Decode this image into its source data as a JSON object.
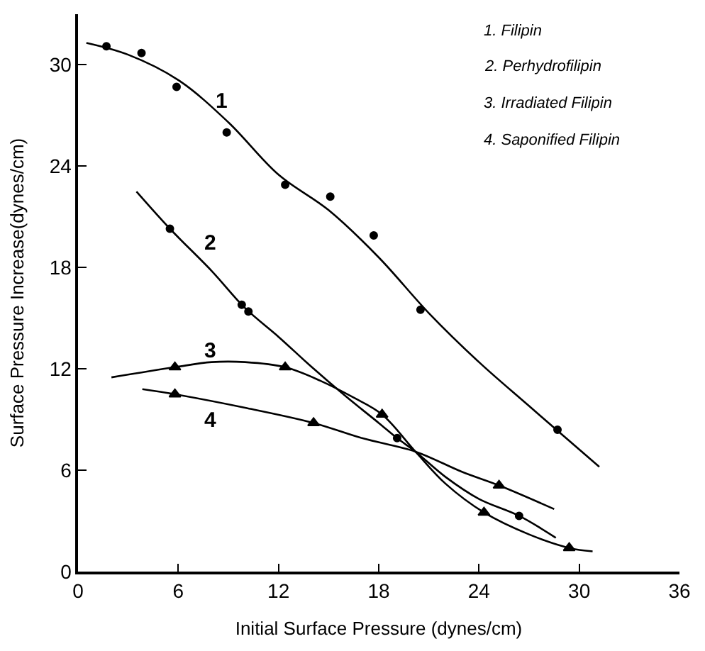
{
  "chart_data": {
    "type": "scatter",
    "xlabel": "Initial Surface Pressure (dynes/cm)",
    "ylabel": "Surface Pressure Increase(dynes/cm)",
    "xlim": [
      0,
      36
    ],
    "xticks": [
      0,
      6,
      12,
      18,
      24,
      30,
      36
    ],
    "ylim": [
      0,
      33
    ],
    "yticks": [
      0,
      6,
      12,
      18,
      24,
      30
    ],
    "legend": false,
    "series": [
      {
        "type": "line",
        "marker": "none",
        "color": "#000000",
        "x": [
          0.5,
          3,
          6,
          9,
          12,
          15,
          18,
          21,
          24,
          27,
          31.2
        ],
        "values": [
          31.3,
          30.6,
          29.1,
          26.6,
          23.5,
          21.4,
          18.6,
          15.3,
          12.4,
          9.8,
          6.2
        ]
      },
      {
        "type": "line",
        "marker": "none",
        "color": "#000000",
        "x": [
          3.5,
          5.5,
          8,
          10,
          12,
          14,
          16,
          18,
          19.1,
          20.2,
          22,
          24,
          26.4,
          28.6
        ],
        "values": [
          22.5,
          20.3,
          17.8,
          15.6,
          13.9,
          12.1,
          10.4,
          8.8,
          7.9,
          7.1,
          5.6,
          4.3,
          3.3,
          2.0
        ]
      },
      {
        "type": "line",
        "marker": "none",
        "color": "#000000",
        "x": [
          2,
          5.8,
          8,
          10,
          12.4,
          14.5,
          16.5,
          18.2,
          20.2,
          22,
          24.3,
          27,
          29.4,
          30.8
        ],
        "values": [
          11.5,
          12.1,
          12.4,
          12.4,
          12.1,
          11.3,
          10.3,
          9.3,
          7.1,
          5.2,
          3.5,
          2.2,
          1.4,
          1.2
        ]
      },
      {
        "type": "line",
        "marker": "none",
        "color": "#000000",
        "x": [
          3.85,
          5.8,
          10,
          14.1,
          17,
          20.2,
          23,
          25.2,
          28.5
        ],
        "values": [
          10.8,
          10.5,
          9.7,
          8.8,
          7.9,
          7.1,
          5.9,
          5.1,
          3.7
        ]
      },
      {
        "marker": "circle",
        "color": "#000000",
        "x": [
          1.7,
          3.8,
          5.9,
          8.9,
          12.4,
          15.1,
          17.7,
          20.5,
          28.7
        ],
        "values": [
          31.1,
          30.7,
          28.7,
          26.0,
          22.9,
          22.2,
          19.9,
          15.5,
          8.4
        ]
      },
      {
        "marker": "circle",
        "color": "#000000",
        "x": [
          5.5,
          9.8,
          10.2,
          19.1,
          26.4
        ],
        "values": [
          20.3,
          15.8,
          15.4,
          7.9,
          3.3
        ]
      },
      {
        "marker": "triangle",
        "color": "#000000",
        "x": [
          5.8,
          12.4,
          18.2,
          24.3,
          29.4
        ],
        "values": [
          12.1,
          12.1,
          9.3,
          3.5,
          1.4
        ]
      },
      {
        "marker": "triangle",
        "color": "#000000",
        "x": [
          5.8,
          14.1,
          25.2
        ],
        "values": [
          10.5,
          8.8,
          5.1
        ]
      }
    ],
    "annotations": [
      "1",
      "2",
      "3",
      "4",
      "1. Filipin",
      "2. Perhydrofilipin",
      "3. Irradiated Filipin",
      "4. Saponified Filipin"
    ]
  }
}
